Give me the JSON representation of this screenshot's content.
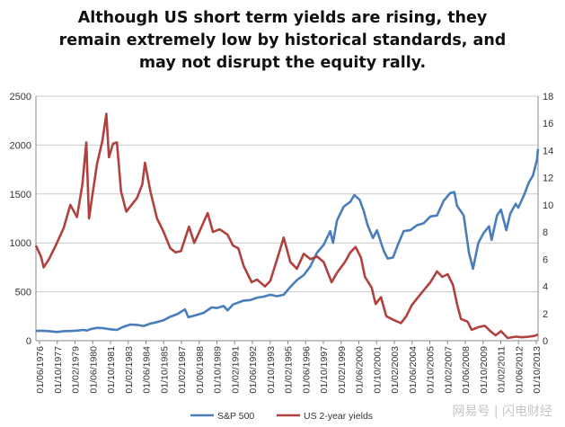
{
  "title_lines": [
    "Although US short term yields are rising, they",
    "remain extremely low by historical standards, and",
    "may not disrupt the equity rally."
  ],
  "watermark": "网易号 | 闪电财经",
  "colors": {
    "sp500": "#4a7ebb",
    "yields": "#b0413e",
    "grid": "#c8c8c8",
    "axis": "#888888",
    "text": "#333333"
  },
  "chart_data": {
    "type": "line",
    "title": "Although US short term yields are rising, they remain extremely low by historical standards, and may not disrupt the equity rally.",
    "x_range": [
      1976.42,
      2014.08
    ],
    "x_tick_labels": [
      "01/06/1976",
      "01/10/1977",
      "01/02/1979",
      "01/06/1980",
      "01/10/1981",
      "01/02/1983",
      "01/06/1984",
      "01/10/1985",
      "01/02/1987",
      "01/06/1988",
      "01/10/1989",
      "01/02/1991",
      "01/06/1992",
      "01/10/1993",
      "01/02/1995",
      "01/06/1996",
      "01/10/1997",
      "01/02/1999",
      "01/06/2000",
      "01/10/2001",
      "01/02/2003",
      "01/06/2004",
      "01/10/2005",
      "01/02/2007",
      "01/06/2008",
      "01/10/2009",
      "01/02/2011",
      "01/06/2012",
      "01/10/2013"
    ],
    "y_left": {
      "min": 0,
      "max": 2500,
      "ticks": [
        0,
        500,
        1000,
        1500,
        2000,
        2500
      ]
    },
    "y_right": {
      "min": 0,
      "max": 18,
      "ticks": [
        0,
        2,
        4,
        6,
        8,
        10,
        12,
        14,
        16,
        18
      ]
    },
    "grid": true,
    "legend_position": "bottom",
    "series": [
      {
        "name": "S&P 500",
        "axis": "left",
        "points": [
          [
            1976.42,
            100
          ],
          [
            1977.0,
            102
          ],
          [
            1977.5,
            96
          ],
          [
            1978.0,
            89
          ],
          [
            1978.5,
            97
          ],
          [
            1979.0,
            99
          ],
          [
            1979.5,
            103
          ],
          [
            1980.0,
            110
          ],
          [
            1980.25,
            104
          ],
          [
            1980.5,
            118
          ],
          [
            1981.0,
            131
          ],
          [
            1981.5,
            128
          ],
          [
            1982.0,
            117
          ],
          [
            1982.5,
            110
          ],
          [
            1982.9,
            138
          ],
          [
            1983.5,
            165
          ],
          [
            1984.0,
            162
          ],
          [
            1984.5,
            151
          ],
          [
            1985.0,
            175
          ],
          [
            1985.5,
            190
          ],
          [
            1986.0,
            210
          ],
          [
            1986.5,
            245
          ],
          [
            1987.0,
            270
          ],
          [
            1987.6,
            320
          ],
          [
            1987.85,
            240
          ],
          [
            1988.5,
            265
          ],
          [
            1989.0,
            285
          ],
          [
            1989.6,
            340
          ],
          [
            1990.0,
            335
          ],
          [
            1990.5,
            355
          ],
          [
            1990.8,
            310
          ],
          [
            1991.2,
            370
          ],
          [
            1992.0,
            410
          ],
          [
            1992.5,
            415
          ],
          [
            1993.0,
            440
          ],
          [
            1993.5,
            450
          ],
          [
            1994.0,
            470
          ],
          [
            1994.5,
            455
          ],
          [
            1995.0,
            470
          ],
          [
            1995.5,
            550
          ],
          [
            1996.0,
            620
          ],
          [
            1996.5,
            670
          ],
          [
            1997.0,
            760
          ],
          [
            1997.5,
            900
          ],
          [
            1998.0,
            980
          ],
          [
            1998.5,
            1120
          ],
          [
            1998.7,
            1000
          ],
          [
            1999.0,
            1230
          ],
          [
            1999.5,
            1370
          ],
          [
            2000.0,
            1420
          ],
          [
            2000.3,
            1490
          ],
          [
            2000.7,
            1440
          ],
          [
            2001.0,
            1330
          ],
          [
            2001.3,
            1180
          ],
          [
            2001.7,
            1050
          ],
          [
            2002.0,
            1130
          ],
          [
            2002.5,
            920
          ],
          [
            2002.8,
            840
          ],
          [
            2003.2,
            850
          ],
          [
            2003.6,
            990
          ],
          [
            2004.0,
            1120
          ],
          [
            2004.5,
            1130
          ],
          [
            2005.0,
            1180
          ],
          [
            2005.5,
            1200
          ],
          [
            2006.0,
            1270
          ],
          [
            2006.5,
            1280
          ],
          [
            2007.0,
            1430
          ],
          [
            2007.5,
            1510
          ],
          [
            2007.8,
            1520
          ],
          [
            2008.0,
            1380
          ],
          [
            2008.5,
            1280
          ],
          [
            2008.9,
            900
          ],
          [
            2009.2,
            735
          ],
          [
            2009.6,
            1000
          ],
          [
            2010.0,
            1100
          ],
          [
            2010.4,
            1170
          ],
          [
            2010.6,
            1030
          ],
          [
            2011.0,
            1280
          ],
          [
            2011.3,
            1340
          ],
          [
            2011.7,
            1130
          ],
          [
            2012.0,
            1300
          ],
          [
            2012.4,
            1400
          ],
          [
            2012.6,
            1360
          ],
          [
            2013.0,
            1480
          ],
          [
            2013.4,
            1620
          ],
          [
            2013.7,
            1690
          ],
          [
            2014.0,
            1850
          ],
          [
            2014.08,
            1960
          ]
        ]
      },
      {
        "name": "US 2-year yields",
        "axis": "right",
        "points": [
          [
            1976.42,
            7.0
          ],
          [
            1976.8,
            6.2
          ],
          [
            1977.0,
            5.4
          ],
          [
            1977.4,
            6.0
          ],
          [
            1977.9,
            7.0
          ],
          [
            1978.5,
            8.3
          ],
          [
            1979.0,
            10.0
          ],
          [
            1979.5,
            9.1
          ],
          [
            1979.9,
            11.5
          ],
          [
            1980.2,
            14.6
          ],
          [
            1980.4,
            9.0
          ],
          [
            1980.7,
            11.0
          ],
          [
            1981.0,
            13.0
          ],
          [
            1981.4,
            14.7
          ],
          [
            1981.7,
            16.7
          ],
          [
            1981.9,
            13.5
          ],
          [
            1982.2,
            14.5
          ],
          [
            1982.5,
            14.6
          ],
          [
            1982.8,
            11.0
          ],
          [
            1983.2,
            9.5
          ],
          [
            1984.0,
            10.5
          ],
          [
            1984.4,
            11.5
          ],
          [
            1984.6,
            13.1
          ],
          [
            1985.0,
            11.0
          ],
          [
            1985.5,
            9.0
          ],
          [
            1986.0,
            8.0
          ],
          [
            1986.5,
            6.8
          ],
          [
            1986.9,
            6.5
          ],
          [
            1987.3,
            6.6
          ],
          [
            1987.9,
            8.4
          ],
          [
            1988.3,
            7.2
          ],
          [
            1988.8,
            8.3
          ],
          [
            1989.3,
            9.4
          ],
          [
            1989.7,
            8.0
          ],
          [
            1990.2,
            8.2
          ],
          [
            1990.8,
            7.8
          ],
          [
            1991.2,
            7.0
          ],
          [
            1991.6,
            6.8
          ],
          [
            1992.0,
            5.5
          ],
          [
            1992.6,
            4.3
          ],
          [
            1993.0,
            4.5
          ],
          [
            1993.6,
            4.0
          ],
          [
            1994.0,
            4.4
          ],
          [
            1994.6,
            6.3
          ],
          [
            1995.0,
            7.6
          ],
          [
            1995.5,
            5.8
          ],
          [
            1996.0,
            5.3
          ],
          [
            1996.5,
            6.4
          ],
          [
            1997.0,
            6.0
          ],
          [
            1997.5,
            6.2
          ],
          [
            1998.0,
            5.8
          ],
          [
            1998.6,
            4.3
          ],
          [
            1999.0,
            5.0
          ],
          [
            1999.6,
            5.8
          ],
          [
            2000.0,
            6.5
          ],
          [
            2000.4,
            6.9
          ],
          [
            2000.8,
            6.1
          ],
          [
            2001.1,
            4.7
          ],
          [
            2001.6,
            3.9
          ],
          [
            2001.9,
            2.7
          ],
          [
            2002.3,
            3.2
          ],
          [
            2002.7,
            1.8
          ],
          [
            2003.3,
            1.5
          ],
          [
            2003.8,
            1.3
          ],
          [
            2004.2,
            1.8
          ],
          [
            2004.6,
            2.6
          ],
          [
            2005.0,
            3.1
          ],
          [
            2005.5,
            3.7
          ],
          [
            2006.0,
            4.3
          ],
          [
            2006.5,
            5.1
          ],
          [
            2006.9,
            4.7
          ],
          [
            2007.3,
            4.9
          ],
          [
            2007.7,
            4.1
          ],
          [
            2008.0,
            2.7
          ],
          [
            2008.3,
            1.6
          ],
          [
            2008.8,
            1.4
          ],
          [
            2009.1,
            0.8
          ],
          [
            2009.6,
            1.0
          ],
          [
            2010.1,
            1.1
          ],
          [
            2010.5,
            0.7
          ],
          [
            2010.9,
            0.4
          ],
          [
            2011.3,
            0.7
          ],
          [
            2011.8,
            0.2
          ],
          [
            2012.4,
            0.3
          ],
          [
            2012.9,
            0.25
          ],
          [
            2013.4,
            0.3
          ],
          [
            2013.8,
            0.35
          ],
          [
            2014.08,
            0.45
          ]
        ]
      }
    ]
  }
}
